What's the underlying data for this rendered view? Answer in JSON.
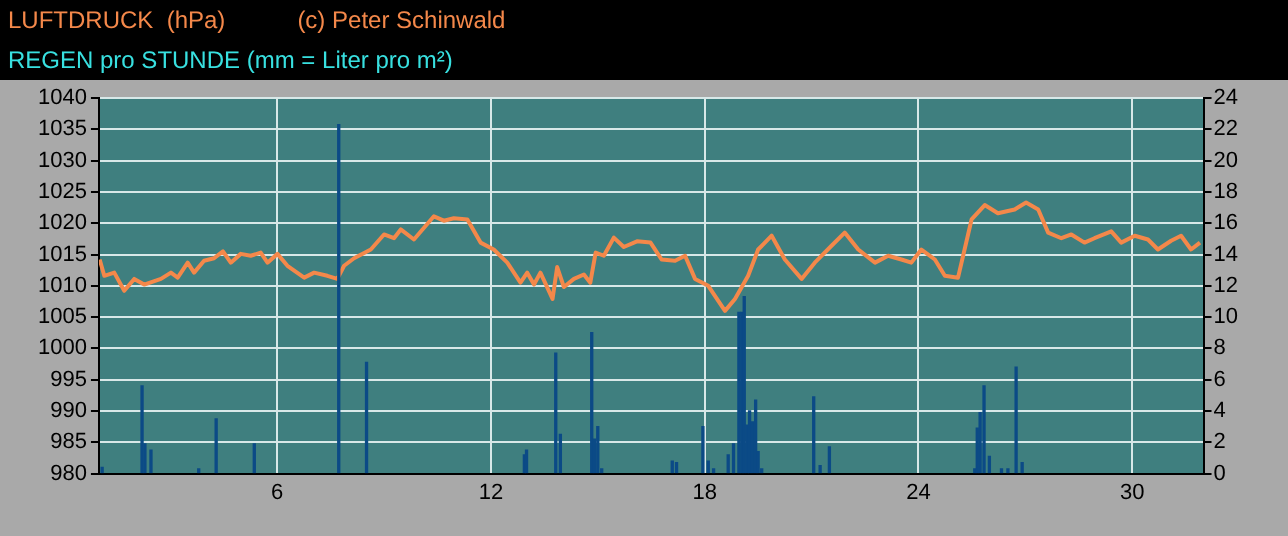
{
  "chart_data": {
    "type": "line",
    "title": "LUFTDRUCK  (hPa)",
    "subtitle": "REGEN pro STUNDE (mm = Liter pro m²)",
    "annotations": [
      "(c) Peter Schinwald"
    ],
    "xlim": [
      1,
      32
    ],
    "xticks": [
      6,
      12,
      18,
      24,
      30
    ],
    "ylim": [
      980,
      1040
    ],
    "yticks": [
      980,
      985,
      990,
      995,
      1000,
      1005,
      1010,
      1015,
      1020,
      1025,
      1030,
      1035,
      1040
    ],
    "y2lim": [
      0,
      24
    ],
    "y2ticks": [
      0,
      2,
      4,
      6,
      8,
      10,
      12,
      14,
      16,
      18,
      20,
      22,
      24
    ],
    "grid": true,
    "series": [
      {
        "type": "bar",
        "axis": "y2",
        "color": "#0b4a86",
        "x": [
          1.09,
          2.21,
          2.29,
          2.46,
          3.8,
          4.29,
          5.36,
          7.73,
          8.51,
          12.94,
          13.0,
          13.82,
          13.95,
          14.83,
          14.91,
          15.0,
          15.11,
          17.09,
          17.21,
          17.95,
          18.1,
          18.25,
          18.66,
          18.81,
          18.96,
          19.04,
          19.11,
          19.19,
          19.26,
          19.34,
          19.43,
          19.5,
          19.6,
          21.06,
          21.24,
          21.5,
          25.58,
          25.65,
          25.73,
          25.84,
          25.99,
          26.33,
          26.51,
          26.74,
          26.91
        ],
        "values": [
          0.4,
          5.6,
          1.9,
          1.5,
          0.3,
          3.5,
          1.9,
          22.3,
          7.1,
          1.2,
          1.5,
          7.7,
          2.5,
          9.0,
          2.2,
          3.0,
          0.3,
          0.8,
          0.7,
          3.0,
          0.8,
          0.3,
          1.2,
          1.9,
          10.3,
          10.3,
          11.3,
          3.1,
          4.0,
          3.3,
          4.7,
          1.4,
          0.3,
          4.9,
          0.5,
          1.7,
          0.3,
          2.9,
          3.9,
          5.6,
          1.1,
          0.3,
          0.3,
          6.8,
          0.7
        ]
      },
      {
        "type": "line",
        "color": "#f4884a",
        "x": [
          1.02,
          1.15,
          1.43,
          1.71,
          1.99,
          2.27,
          2.74,
          3.02,
          3.21,
          3.49,
          3.67,
          3.95,
          4.23,
          4.48,
          4.7,
          4.98,
          5.26,
          5.54,
          5.73,
          6.01,
          6.29,
          6.76,
          7.04,
          7.41,
          7.69,
          7.88,
          8.16,
          8.63,
          9.0,
          9.28,
          9.47,
          9.84,
          10.4,
          10.68,
          10.96,
          11.34,
          11.71,
          12.08,
          12.46,
          12.83,
          13.02,
          13.21,
          13.39,
          13.73,
          13.86,
          14.05,
          14.33,
          14.61,
          14.79,
          14.94,
          15.17,
          15.45,
          15.73,
          16.1,
          16.48,
          16.79,
          17.17,
          17.45,
          17.73,
          18.1,
          18.57,
          18.85,
          19.22,
          19.5,
          19.88,
          20.25,
          20.72,
          21.09,
          21.56,
          21.93,
          22.31,
          22.78,
          23.15,
          23.52,
          23.8,
          24.08,
          24.46,
          24.74,
          25.11,
          25.49,
          25.86,
          26.23,
          26.7,
          27.02,
          27.36,
          27.64,
          28.01,
          28.29,
          28.66,
          28.94,
          29.41,
          29.69,
          30.07,
          30.44,
          30.72,
          31.09,
          31.37,
          31.65,
          31.9
        ],
        "values": [
          1014.2,
          1011.6,
          1012.1,
          1009.2,
          1011.1,
          1010.2,
          1011.1,
          1012.1,
          1011.3,
          1013.7,
          1012.1,
          1014.0,
          1014.4,
          1015.5,
          1013.7,
          1015.1,
          1014.8,
          1015.3,
          1013.7,
          1015.1,
          1013.2,
          1011.3,
          1012.1,
          1011.6,
          1011.1,
          1013.2,
          1014.4,
          1015.8,
          1018.2,
          1017.6,
          1019.0,
          1017.4,
          1021.1,
          1020.4,
          1020.8,
          1020.6,
          1016.9,
          1015.8,
          1013.7,
          1010.5,
          1012.1,
          1010.2,
          1012.1,
          1007.9,
          1013.0,
          1009.8,
          1011.1,
          1011.8,
          1010.5,
          1015.3,
          1014.8,
          1017.7,
          1016.2,
          1017.1,
          1016.9,
          1014.2,
          1014.0,
          1014.8,
          1011.1,
          1010.0,
          1006.0,
          1007.9,
          1011.6,
          1015.8,
          1018.0,
          1014.2,
          1011.1,
          1013.7,
          1016.4,
          1018.5,
          1015.8,
          1013.7,
          1014.8,
          1014.2,
          1013.7,
          1015.8,
          1014.2,
          1011.6,
          1011.3,
          1020.6,
          1022.9,
          1021.6,
          1022.2,
          1023.3,
          1022.2,
          1018.5,
          1017.6,
          1018.2,
          1016.9,
          1017.6,
          1018.7,
          1016.9,
          1018.0,
          1017.4,
          1015.8,
          1017.2,
          1018.0,
          1015.8,
          1016.9
        ]
      }
    ]
  }
}
